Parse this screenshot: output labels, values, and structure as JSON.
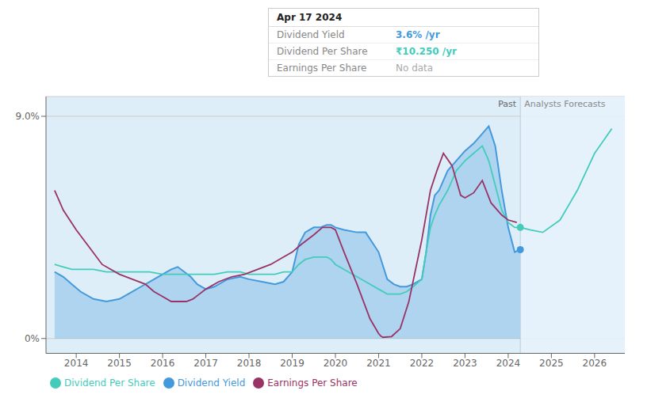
{
  "chart_data": {
    "type": "line",
    "xlim": [
      2013.3,
      2026.7
    ],
    "xticks": [
      2014,
      2015,
      2016,
      2017,
      2018,
      2019,
      2020,
      2021,
      2022,
      2023,
      2024,
      2025,
      2026
    ],
    "ylim": [
      -0.6,
      9.8
    ],
    "yticks": [
      {
        "value": 0,
        "label": "0%"
      },
      {
        "value": 9.0,
        "label": "9.0%"
      }
    ],
    "grid": "y",
    "legend": "bottom",
    "background": "#ddeef8",
    "forecast_start": 2024.28,
    "forecast_color": "#e8f3fb",
    "region_labels": [
      "Past",
      "Analysts Forecasts"
    ],
    "points": [
      {
        "x": 2024.28,
        "y": 3.6,
        "color": "#4499dd"
      },
      {
        "x": 2024.28,
        "y": 4.5,
        "color": "#44ccbb"
      }
    ],
    "tooltip": {
      "title": "Apr 17 2024",
      "rows": [
        {
          "label": "Dividend Yield",
          "value": "3.6% /yr",
          "color": "#4499dd"
        },
        {
          "label": "Dividend Per Share",
          "value": "₹10.250 /yr",
          "color": "#44ccbb"
        },
        {
          "label": "Earnings Per Share",
          "value": "No data",
          "color": "#aaaaaa"
        }
      ]
    },
    "series": [
      {
        "name": "Dividend Yield",
        "type": "area",
        "color": "#4499dd",
        "x": [
          2013.5,
          2013.7,
          2013.9,
          2014.1,
          2014.4,
          2014.7,
          2015.0,
          2015.2,
          2015.5,
          2015.7,
          2016.0,
          2016.2,
          2016.35,
          2016.5,
          2016.65,
          2016.8,
          2017.0,
          2017.2,
          2017.5,
          2017.8,
          2018.0,
          2018.3,
          2018.6,
          2018.8,
          2019.0,
          2019.15,
          2019.3,
          2019.5,
          2019.65,
          2019.8,
          2019.9,
          2020.0,
          2020.2,
          2020.5,
          2020.7,
          2021.0,
          2021.2,
          2021.35,
          2021.5,
          2021.65,
          2021.8,
          2022.0,
          2022.1,
          2022.2,
          2022.3,
          2022.4,
          2022.6,
          2022.8,
          2023.0,
          2023.2,
          2023.4,
          2023.55,
          2023.7,
          2023.85,
          2024.0,
          2024.15,
          2024.28
        ],
        "values": [
          2.7,
          2.5,
          2.2,
          1.9,
          1.6,
          1.5,
          1.6,
          1.8,
          2.1,
          2.3,
          2.6,
          2.8,
          2.9,
          2.7,
          2.5,
          2.2,
          2.0,
          2.1,
          2.4,
          2.5,
          2.4,
          2.3,
          2.2,
          2.3,
          2.7,
          3.8,
          4.3,
          4.5,
          4.5,
          4.6,
          4.6,
          4.5,
          4.4,
          4.3,
          4.3,
          3.5,
          2.4,
          2.2,
          2.1,
          2.1,
          2.2,
          2.4,
          3.5,
          5.0,
          5.8,
          6.0,
          6.8,
          7.2,
          7.6,
          7.9,
          8.3,
          8.6,
          7.8,
          6.0,
          4.5,
          3.5,
          3.6
        ]
      },
      {
        "name": "Dividend Per Share",
        "type": "line",
        "color": "#44ccbb",
        "x": [
          2013.5,
          2013.7,
          2013.9,
          2014.1,
          2014.4,
          2014.7,
          2015.0,
          2015.2,
          2015.5,
          2015.7,
          2016.0,
          2016.2,
          2016.35,
          2016.5,
          2016.65,
          2016.8,
          2017.0,
          2017.2,
          2017.5,
          2017.8,
          2018.0,
          2018.3,
          2018.6,
          2018.8,
          2019.0,
          2019.15,
          2019.3,
          2019.5,
          2019.65,
          2019.8,
          2019.9,
          2020.0,
          2020.2,
          2020.5,
          2020.7,
          2021.0,
          2021.2,
          2021.35,
          2021.5,
          2021.65,
          2021.8,
          2022.0,
          2022.1,
          2022.2,
          2022.3,
          2022.4,
          2022.6,
          2022.8,
          2023.0,
          2023.2,
          2023.4,
          2023.55,
          2023.7,
          2023.85,
          2024.0,
          2024.15,
          2024.28,
          2024.5,
          2024.8,
          2025.2,
          2025.6,
          2026.0,
          2026.4
        ],
        "values": [
          3.0,
          2.9,
          2.8,
          2.8,
          2.8,
          2.7,
          2.7,
          2.7,
          2.7,
          2.7,
          2.6,
          2.6,
          2.6,
          2.6,
          2.6,
          2.6,
          2.6,
          2.6,
          2.7,
          2.7,
          2.6,
          2.6,
          2.6,
          2.7,
          2.7,
          3.0,
          3.2,
          3.3,
          3.3,
          3.3,
          3.2,
          3.0,
          2.8,
          2.5,
          2.3,
          2.0,
          1.8,
          1.8,
          1.8,
          1.9,
          2.1,
          2.4,
          3.5,
          4.5,
          5.0,
          5.4,
          6.0,
          6.8,
          7.2,
          7.5,
          7.8,
          7.2,
          6.2,
          5.2,
          4.7,
          4.5,
          4.5,
          4.4,
          4.3,
          4.8,
          6.0,
          7.5,
          8.5
        ]
      },
      {
        "name": "Earnings Per Share",
        "type": "line",
        "color": "#993366",
        "x": [
          2013.5,
          2013.7,
          2014.0,
          2014.3,
          2014.6,
          2015.0,
          2015.3,
          2015.6,
          2015.8,
          2016.0,
          2016.2,
          2016.4,
          2016.55,
          2016.7,
          2016.85,
          2017.0,
          2017.3,
          2017.6,
          2017.9,
          2018.2,
          2018.5,
          2018.8,
          2019.0,
          2019.2,
          2019.5,
          2019.7,
          2019.9,
          2020.0,
          2020.2,
          2020.5,
          2020.8,
          2021.0,
          2021.05,
          2021.1,
          2021.3,
          2021.5,
          2021.7,
          2022.0,
          2022.2,
          2022.35,
          2022.5,
          2022.7,
          2022.9,
          2023.0,
          2023.2,
          2023.4,
          2023.6,
          2023.85,
          2024.0,
          2024.2
        ],
        "values": [
          6.0,
          5.2,
          4.4,
          3.7,
          3.0,
          2.6,
          2.4,
          2.2,
          1.9,
          1.7,
          1.5,
          1.5,
          1.5,
          1.6,
          1.8,
          2.0,
          2.3,
          2.5,
          2.6,
          2.8,
          3.0,
          3.3,
          3.5,
          3.8,
          4.2,
          4.5,
          4.5,
          4.4,
          3.5,
          2.2,
          0.8,
          0.2,
          0.1,
          0.05,
          0.08,
          0.4,
          1.5,
          4.0,
          6.0,
          6.8,
          7.5,
          7.0,
          5.8,
          5.7,
          5.9,
          6.4,
          5.5,
          5.0,
          4.8,
          4.7
        ]
      }
    ]
  }
}
